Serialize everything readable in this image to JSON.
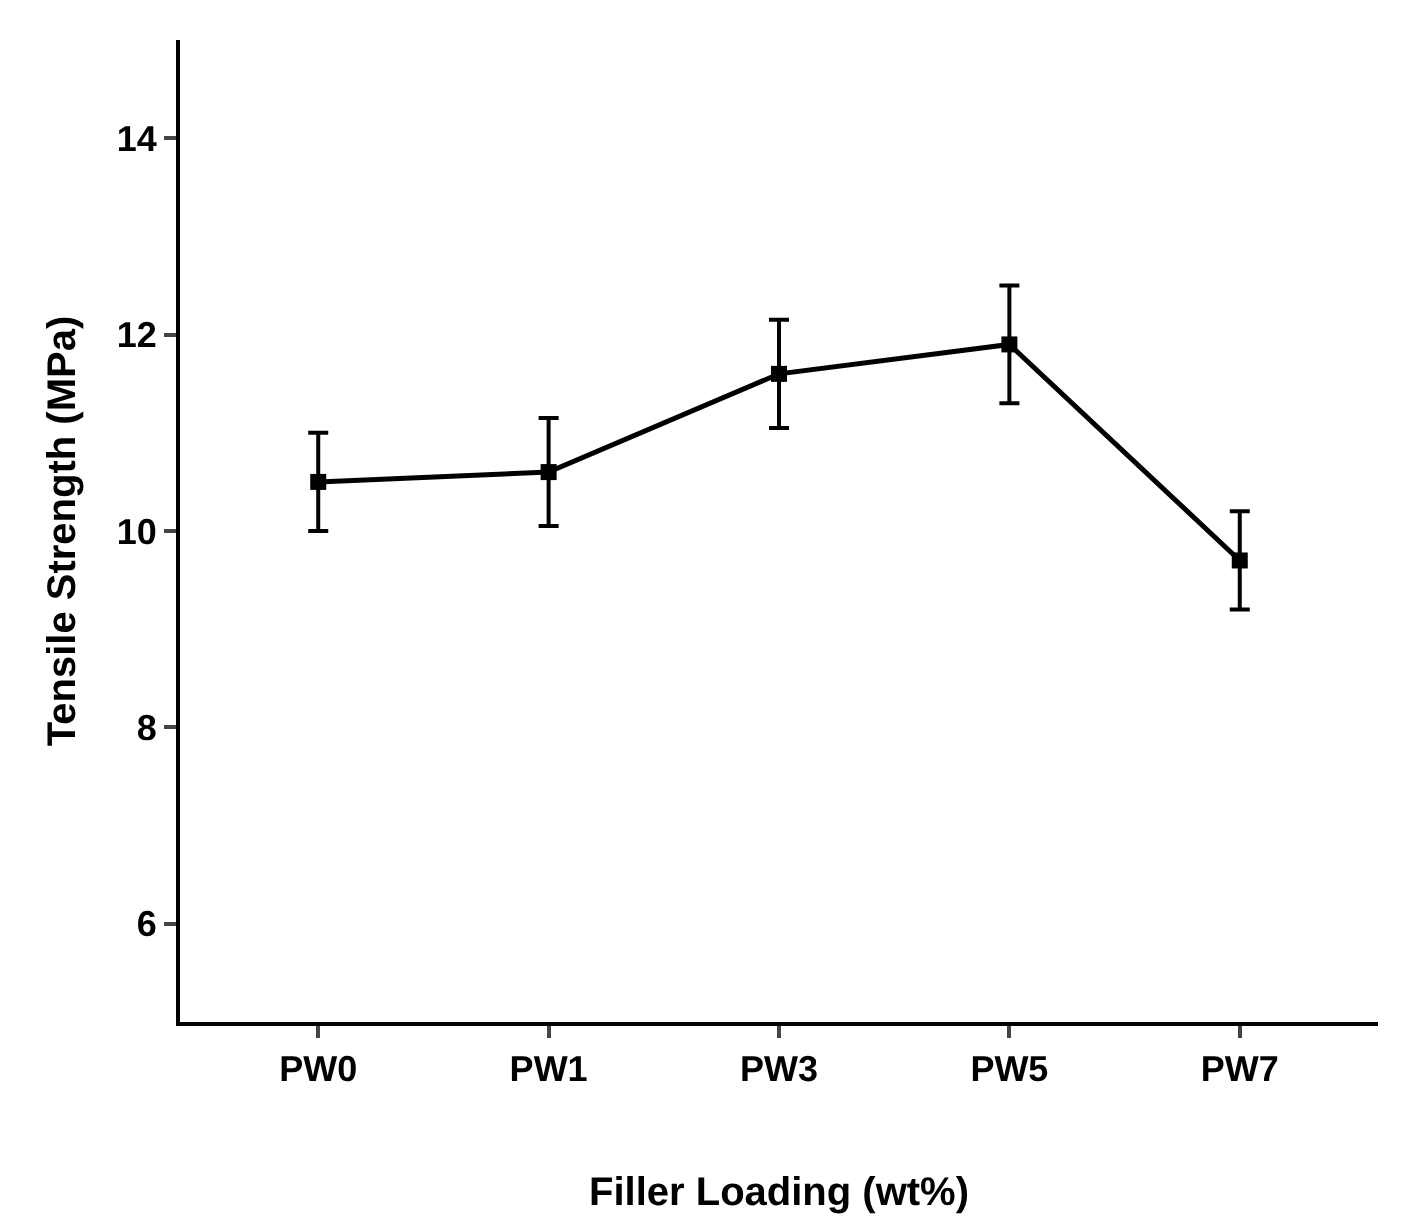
{
  "chart_data": {
    "type": "line",
    "xlabel": "Filler Loading (wt%)",
    "ylabel": "Tensile Strength (MPa)",
    "categories": [
      "PW0",
      "PW1",
      "PW3",
      "PW5",
      "PW7"
    ],
    "series": [
      {
        "color": "#000000",
        "values": [
          10.5,
          10.6,
          11.6,
          11.9,
          9.7
        ],
        "errors": [
          0.5,
          0.55,
          0.55,
          0.6,
          0.5
        ]
      }
    ],
    "ylim": [
      5,
      15
    ],
    "yticks": [
      6,
      8,
      10,
      12,
      14
    ],
    "marker": "square",
    "line_style": "solid"
  }
}
